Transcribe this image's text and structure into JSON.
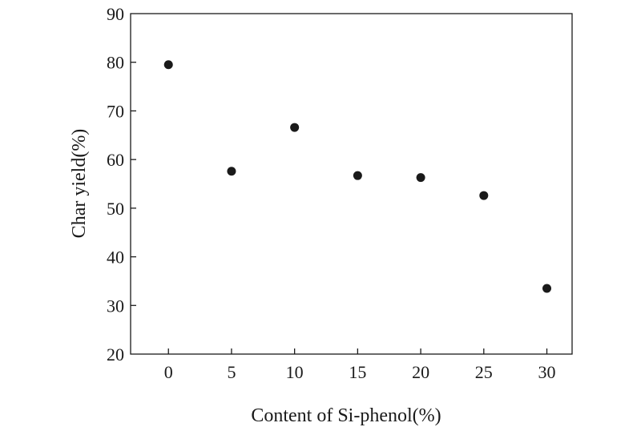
{
  "chart_data": {
    "type": "scatter",
    "title": "",
    "xlabel": "Content of Si-phenol(%)",
    "ylabel": "Char yield(%)",
    "x_ticks": [
      0,
      5,
      10,
      15,
      20,
      25,
      30
    ],
    "y_ticks": [
      20,
      30,
      40,
      50,
      60,
      70,
      80,
      90
    ],
    "xlim": [
      -3,
      32
    ],
    "ylim": [
      20,
      90
    ],
    "grid": false,
    "series": [
      {
        "x": [
          0,
          5,
          10,
          15,
          20,
          25,
          30
        ],
        "y": [
          79.5,
          57.6,
          66.6,
          56.7,
          56.3,
          52.6,
          33.5
        ]
      }
    ]
  }
}
